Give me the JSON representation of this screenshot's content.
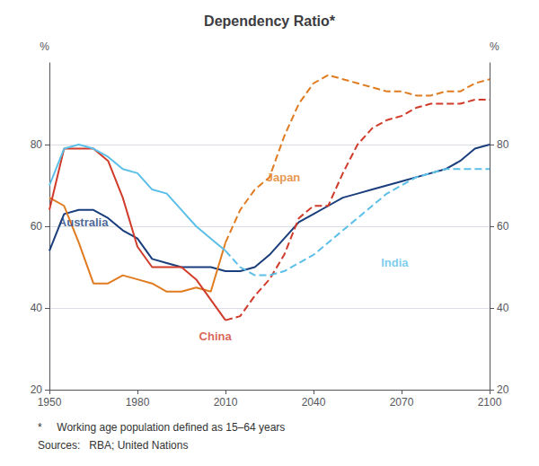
{
  "chart_data": {
    "type": "line",
    "title": "Dependency Ratio*",
    "y_label": "%",
    "y2_label": "%",
    "footnote": "*     Working age population defined as 15–64 years",
    "sources": "Sources:   RBA; United Nations",
    "xlim": [
      1950,
      2100
    ],
    "xticks": [
      1950,
      1980,
      2010,
      2040,
      2070,
      2100
    ],
    "ylim": [
      20,
      100
    ],
    "yticks": [
      20,
      40,
      60,
      80
    ],
    "y2lim": [
      20,
      100
    ],
    "y2ticks": [
      20,
      40,
      60,
      80
    ],
    "grid": true,
    "series": [
      {
        "color": "#1a3d7c",
        "line_style": "solid",
        "x": [
          1950,
          1955,
          1960,
          1965,
          1970,
          1975,
          1980,
          1985,
          1990,
          1995,
          2000,
          2005,
          2010,
          2015,
          2020,
          2025,
          2030,
          2035,
          2040,
          2045,
          2050,
          2055,
          2060,
          2065,
          2070,
          2075,
          2080,
          2085,
          2090,
          2095,
          2100
        ],
        "values": [
          54,
          63,
          64,
          64,
          62,
          59,
          57,
          52,
          51,
          50,
          50,
          50,
          49,
          49,
          50,
          53,
          57,
          61,
          63,
          65,
          67,
          68,
          69,
          70,
          71,
          72,
          73,
          74,
          76,
          79,
          80
        ]
      },
      {
        "color": "#e07b20",
        "line_style": "solid",
        "x": [
          1950,
          1955,
          1960,
          1965,
          1970,
          1975,
          1980,
          1985,
          1990,
          1995,
          2000,
          2005,
          2010
        ],
        "values": [
          67,
          65,
          56,
          46,
          46,
          48,
          47,
          46,
          44,
          44,
          45,
          44,
          56
        ]
      },
      {
        "color": "#e07b20",
        "line_style": "dashed",
        "x": [
          2010,
          2015,
          2020,
          2025,
          2030,
          2035,
          2040,
          2045,
          2050,
          2055,
          2060,
          2065,
          2070,
          2075,
          2080,
          2085,
          2090,
          2095,
          2100
        ],
        "values": [
          56,
          64,
          69,
          72,
          82,
          90,
          95,
          97,
          96,
          95,
          94,
          93,
          93,
          92,
          92,
          93,
          93,
          95,
          96
        ]
      },
      {
        "color": "#d13b2a",
        "line_style": "solid",
        "x": [
          1950,
          1955,
          1960,
          1965,
          1970,
          1975,
          1980,
          1985,
          1990,
          1995,
          2000,
          2005,
          2010
        ],
        "values": [
          64,
          79,
          79,
          79,
          76,
          67,
          55,
          50,
          50,
          50,
          47,
          42,
          37
        ]
      },
      {
        "color": "#d13b2a",
        "line_style": "dashed",
        "x": [
          2010,
          2015,
          2020,
          2025,
          2030,
          2035,
          2040,
          2045,
          2050,
          2055,
          2060,
          2065,
          2070,
          2075,
          2080,
          2085,
          2090,
          2095,
          2100
        ],
        "values": [
          37,
          38,
          43,
          47,
          53,
          62,
          65,
          65,
          73,
          80,
          84,
          86,
          87,
          89,
          90,
          90,
          90,
          91,
          91
        ]
      },
      {
        "color": "#5bbfe8",
        "line_style": "solid",
        "x": [
          1950,
          1955,
          1960,
          1965,
          1970,
          1975,
          1980,
          1985,
          1990,
          1995,
          2000,
          2005,
          2010
        ],
        "values": [
          70,
          79,
          80,
          79,
          77,
          74,
          73,
          69,
          68,
          64,
          60,
          57,
          54
        ]
      },
      {
        "color": "#5bbfe8",
        "line_style": "dashed",
        "x": [
          2010,
          2015,
          2020,
          2025,
          2030,
          2035,
          2040,
          2045,
          2050,
          2055,
          2060,
          2065,
          2070,
          2075,
          2080,
          2085,
          2090,
          2095,
          2100
        ],
        "values": [
          54,
          50,
          48,
          48,
          49,
          51,
          53,
          56,
          59,
          62,
          65,
          68,
          70,
          72,
          73,
          74,
          74,
          74,
          74
        ]
      }
    ],
    "annotations": [
      {
        "text": "Australia",
        "x": 1953,
        "y": 61,
        "color": "#1a3d7c"
      },
      {
        "text": "Japan",
        "x": 2024,
        "y": 72,
        "color": "#e07b20"
      },
      {
        "text": "China",
        "x": 2001,
        "y": 33,
        "color": "#d13b2a"
      },
      {
        "text": "India",
        "x": 2063,
        "y": 51,
        "color": "#5bbfe8"
      }
    ]
  }
}
